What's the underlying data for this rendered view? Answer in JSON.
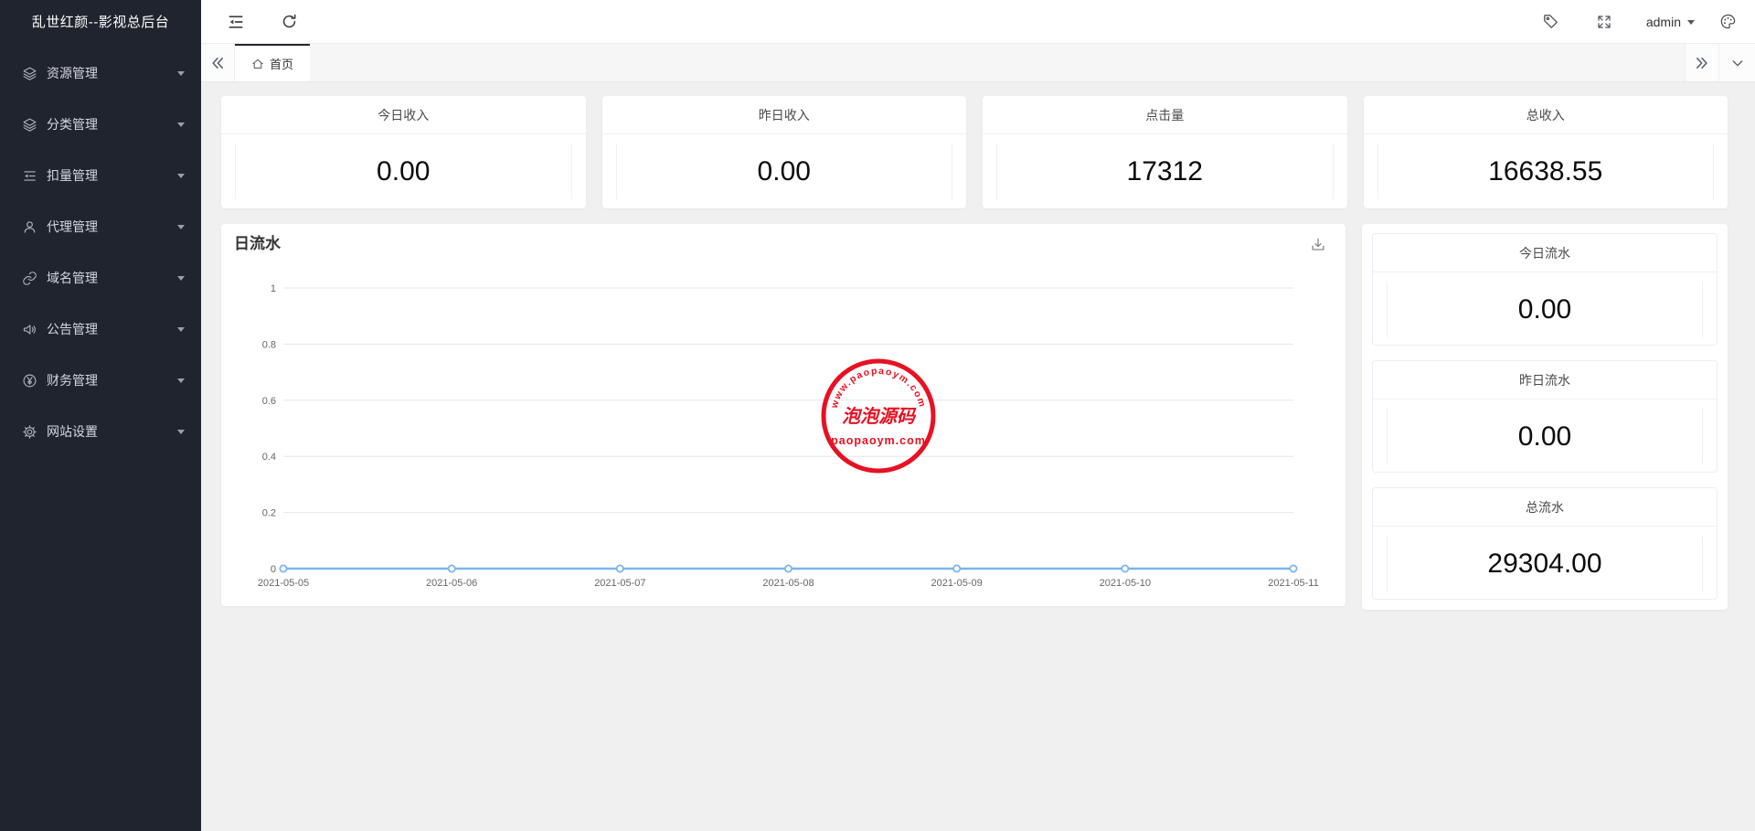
{
  "app": {
    "sidebar_title": "乱世红颜--影视总后台"
  },
  "sidebar": {
    "items": [
      {
        "icon": "layers-icon",
        "label": "资源管理"
      },
      {
        "icon": "layers-icon",
        "label": "分类管理"
      },
      {
        "icon": "list-icon",
        "label": "扣量管理"
      },
      {
        "icon": "user-icon",
        "label": "代理管理"
      },
      {
        "icon": "link-icon",
        "label": "域名管理"
      },
      {
        "icon": "speaker-icon",
        "label": "公告管理"
      },
      {
        "icon": "yen-icon",
        "label": "财务管理"
      },
      {
        "icon": "gear-icon",
        "label": "网站设置"
      }
    ]
  },
  "header": {
    "username": "admin"
  },
  "tabbar": {
    "active_tab": "首页"
  },
  "stat_cards": [
    {
      "label": "今日收入",
      "value": "0.00"
    },
    {
      "label": "昨日收入",
      "value": "0.00"
    },
    {
      "label": "点击量",
      "value": "17312"
    },
    {
      "label": "总收入",
      "value": "16638.55"
    }
  ],
  "chart": {
    "title": "日流水"
  },
  "chart_data": {
    "type": "line",
    "title": "日流水",
    "categories": [
      "2021-05-05",
      "2021-05-06",
      "2021-05-07",
      "2021-05-08",
      "2021-05-09",
      "2021-05-10",
      "2021-05-11"
    ],
    "values": [
      0,
      0,
      0,
      0,
      0,
      0,
      0
    ],
    "xlabel": "",
    "ylabel": "",
    "ylim": [
      0,
      1
    ],
    "yticks": [
      0,
      0.2,
      0.4,
      0.6,
      0.8,
      1
    ],
    "line_color": "#7cb5ec",
    "grid_color": "#e6e6e6",
    "grid": true,
    "legend": "none",
    "marker": "hollow-circle"
  },
  "side_stats": [
    {
      "label": "今日流水",
      "value": "0.00"
    },
    {
      "label": "昨日流水",
      "value": "0.00"
    },
    {
      "label": "总流水",
      "value": "29304.00"
    }
  ],
  "watermark": {
    "arc_text": "www.paopaoym.com",
    "center_text": "泡泡源码",
    "bottom_text": "paopaoym.com",
    "color": "#e60012"
  }
}
